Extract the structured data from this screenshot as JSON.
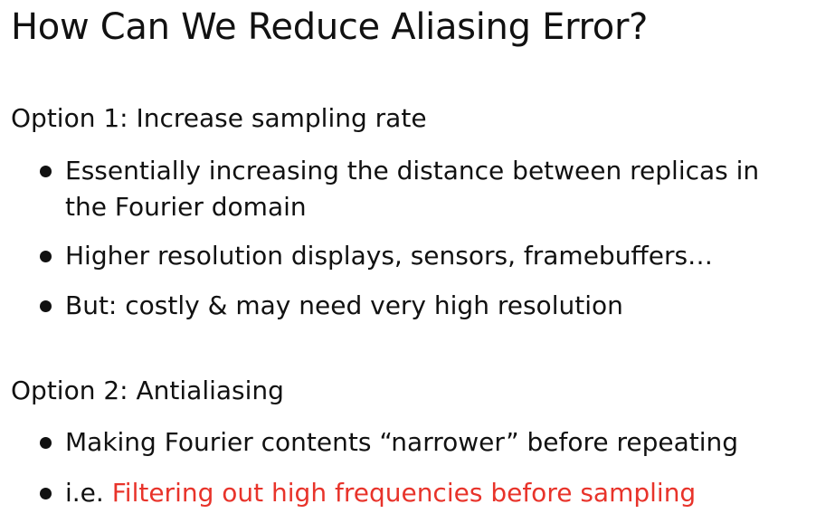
{
  "title": "How Can We Reduce Aliasing Error?",
  "colors": {
    "text": "#111111",
    "accent": "#e8332a",
    "background": "#ffffff"
  },
  "option1": {
    "heading": "Option 1: Increase sampling rate",
    "bullets": [
      "Essentially increasing the distance between replicas in the Fourier domain",
      "Higher resolution displays, sensors, framebuffers…",
      "But: costly & may need very high resolution"
    ]
  },
  "option2": {
    "heading": "Option 2: Antialiasing",
    "bullets": [
      "Making Fourier contents “narrower” before repeating"
    ],
    "last_bullet": {
      "prefix": "i.e. ",
      "highlight": "Filtering out high frequencies before sampling"
    }
  }
}
